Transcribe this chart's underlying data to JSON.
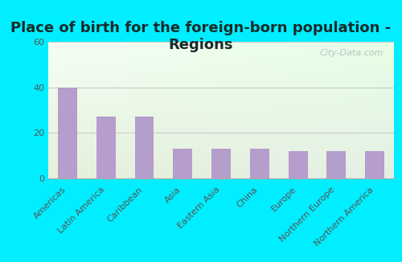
{
  "title": "Place of birth for the foreign-born population -\nRegions",
  "categories": [
    "Americas",
    "Latin America",
    "Caribbean",
    "Asia",
    "Eastern Asia",
    "China",
    "Europe",
    "Northern Europe",
    "Northern America"
  ],
  "values": [
    40,
    27,
    27,
    13,
    13,
    13,
    12,
    12,
    12
  ],
  "bar_color": "#b59dcc",
  "background_outer": "#00eeff",
  "gradient_top_left": "#deeedd",
  "gradient_top_right": "#f5fff5",
  "gradient_bottom": "#d8eecc",
  "ylim": [
    0,
    60
  ],
  "yticks": [
    0,
    20,
    40,
    60
  ],
  "watermark": "City-Data.com",
  "title_fontsize": 13,
  "tick_fontsize": 8,
  "bar_width": 0.5,
  "grid_color": "#cccccc",
  "spine_color": "#aaaaaa",
  "title_color": "#1a2a2a",
  "tick_color": "#555555"
}
